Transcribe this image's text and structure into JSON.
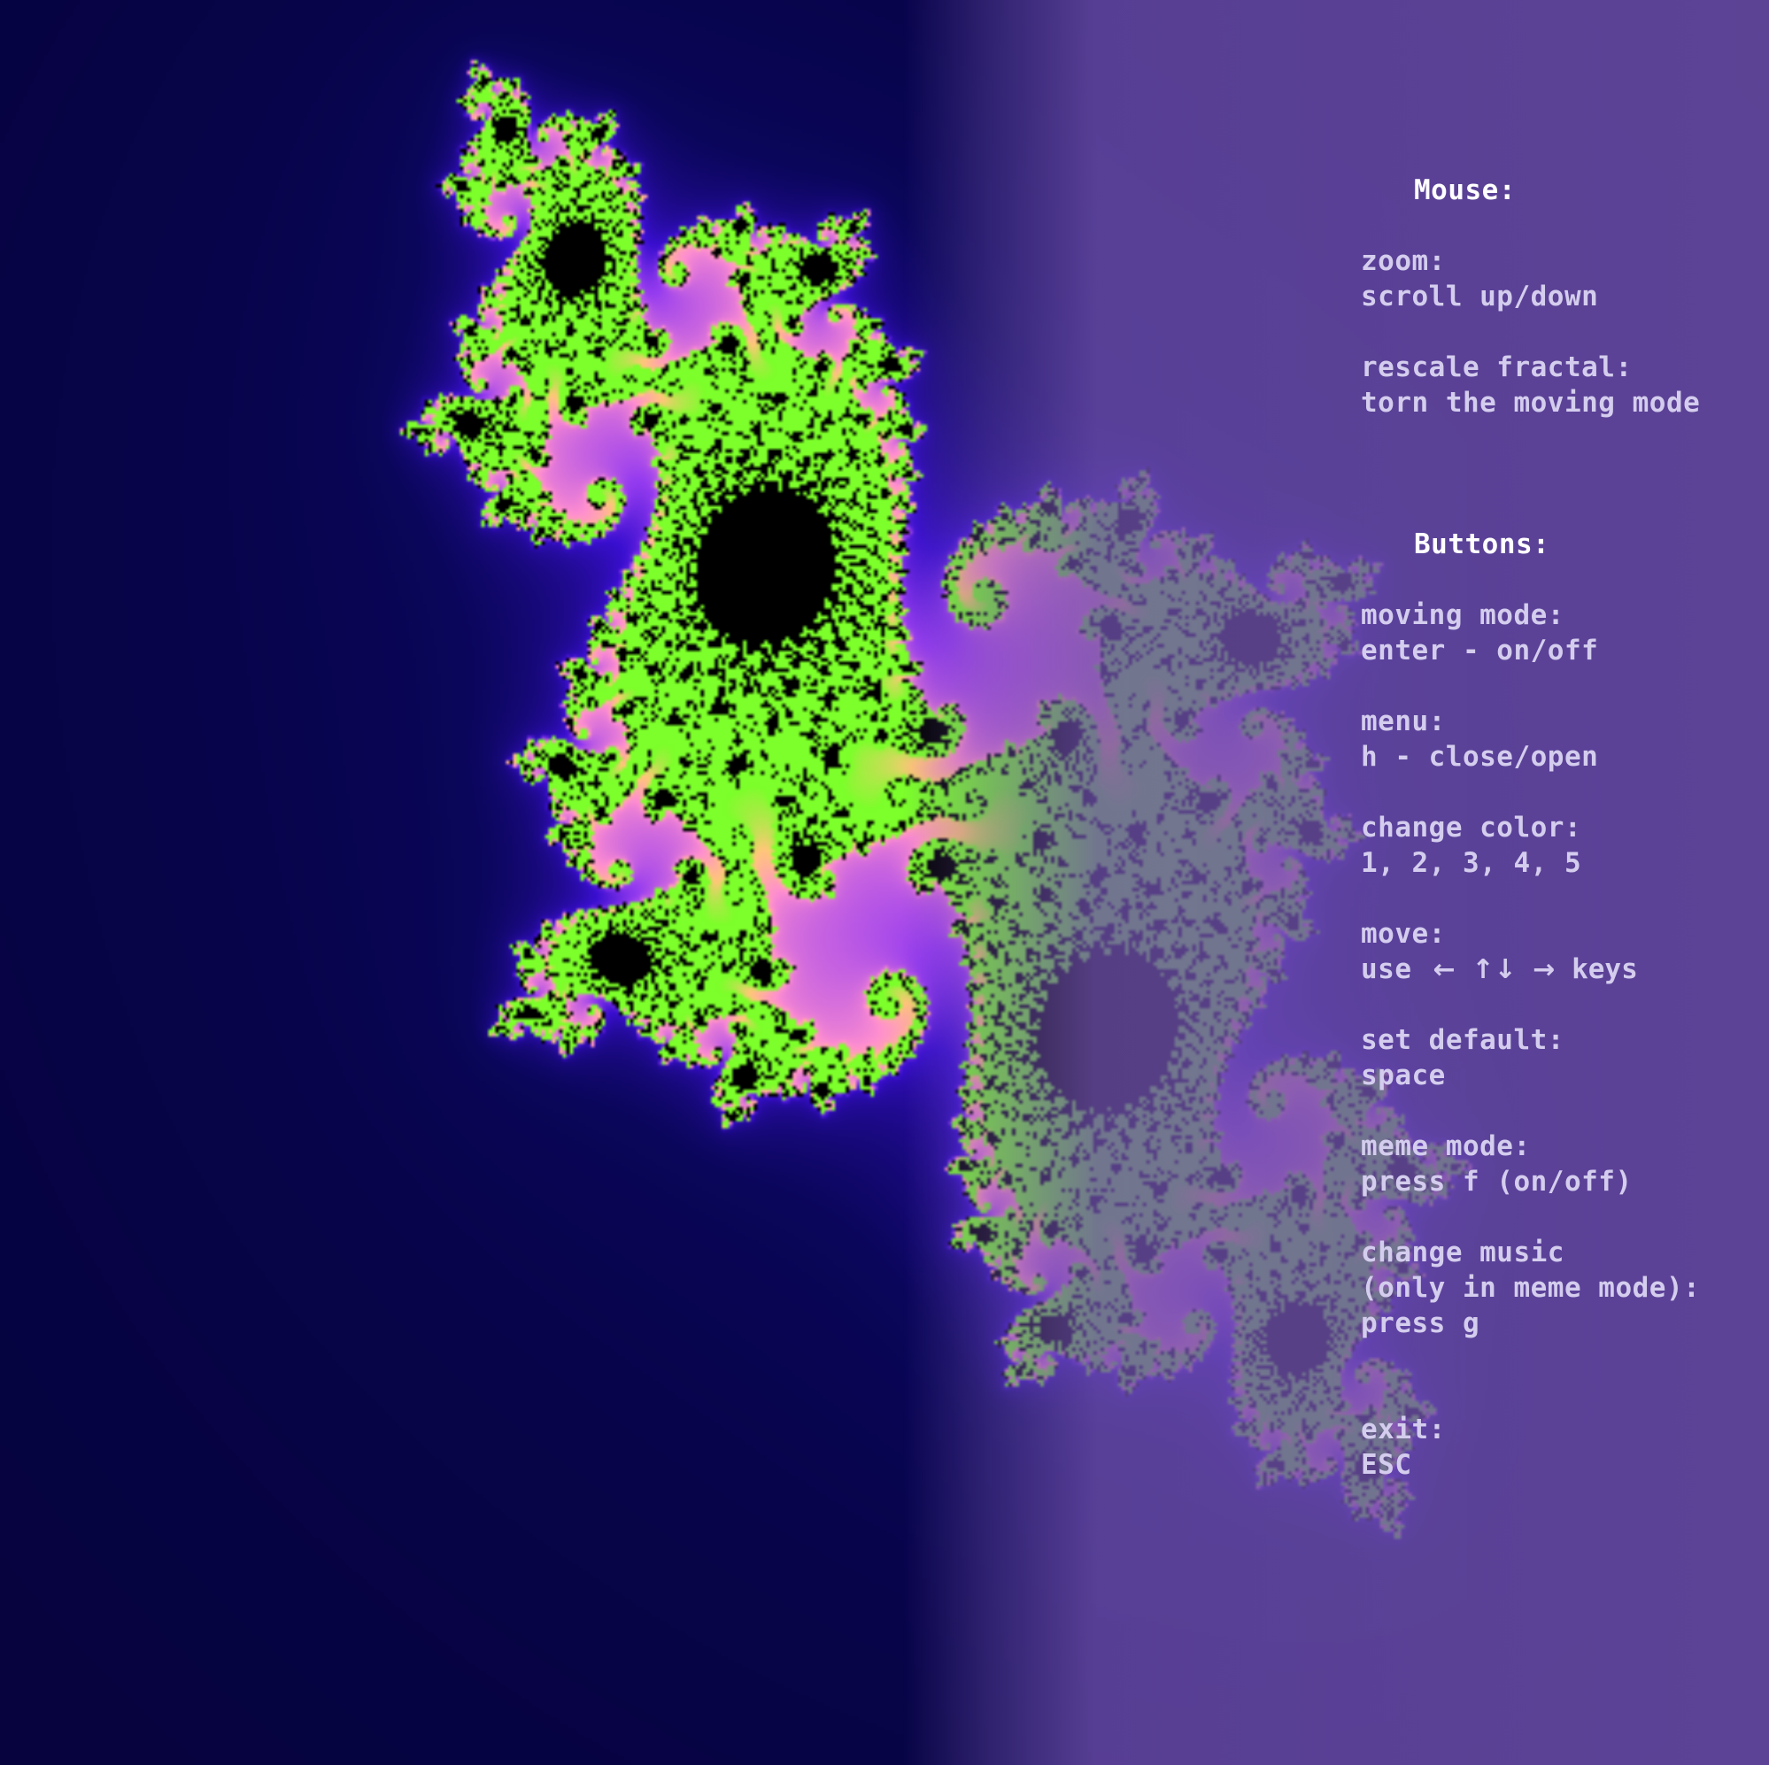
{
  "fractal": {
    "type": "julia-set",
    "colors": {
      "background": "#020026",
      "field": "#3a0fd0",
      "glow": "#ff8fd0",
      "core": "#7cff2a",
      "set": "#000000"
    }
  },
  "menu": {
    "mouse_heading": "Mouse:",
    "zoom_label": "zoom:",
    "zoom_value": "scroll up/down",
    "rescale_label": "rescale fractal:",
    "rescale_value": "torn the moving mode",
    "buttons_heading": "Buttons:",
    "moving_label": "moving mode:",
    "moving_value": "enter - on/off",
    "menu_label": "menu:",
    "menu_value": "h - close/open",
    "color_label": "change color:",
    "color_value": "1, 2, 3, 4, 5",
    "move_label": "move:",
    "move_use": "use",
    "move_left": "←",
    "move_up": "↑",
    "move_down": "↓",
    "move_right": "→",
    "move_keys": "keys",
    "default_label": "set default:",
    "default_value": "space",
    "meme_label": "meme mode:",
    "meme_value": "press f (on/off)",
    "music_label": "change music",
    "music_note": "(only in meme mode):",
    "music_value": "press g",
    "exit_label": "exit:",
    "exit_value": "ESC"
  }
}
